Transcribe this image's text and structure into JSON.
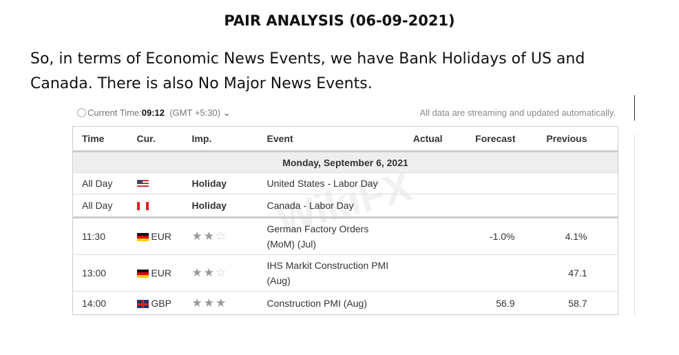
{
  "title": "PAIR ANALYSIS (06-09-2021)",
  "paragraph": "So, in terms of Economic News Events, we have Bank Holidays of US and Canada. There is also No Major News Events.",
  "calendar": {
    "current_time_label": "Current Time:",
    "current_time": "09:12",
    "timezone": "(GMT +5:30)",
    "stream_note": "All data are streaming and updated automatically.",
    "headers": [
      "Time",
      "Cur.",
      "Imp.",
      "Event",
      "Actual",
      "Forecast",
      "Previous"
    ],
    "date": "Monday, September 6, 2021",
    "rows": [
      {
        "time": "All Day",
        "flag": "us",
        "cur": "",
        "imp": "Holiday",
        "stars": 0,
        "event": "United States - Labor Day",
        "actual": "",
        "forecast": "",
        "previous": ""
      },
      {
        "time": "All Day",
        "flag": "ca",
        "cur": "",
        "imp": "Holiday",
        "stars": 0,
        "event": "Canada - Labor Day",
        "actual": "",
        "forecast": "",
        "previous": ""
      },
      {
        "time": "11:30",
        "flag": "de",
        "cur": "EUR",
        "imp": "",
        "stars": 2,
        "event": "German Factory Orders (MoM) (Jul)",
        "actual": "",
        "forecast": "-1.0%",
        "previous": "4.1%"
      },
      {
        "time": "13:00",
        "flag": "de",
        "cur": "EUR",
        "imp": "",
        "stars": 2,
        "event": "IHS Markit Construction PMI (Aug)",
        "actual": "",
        "forecast": "",
        "previous": "47.1"
      },
      {
        "time": "14:00",
        "flag": "gb",
        "cur": "GBP",
        "imp": "",
        "stars": 3,
        "event": "Construction PMI (Aug)",
        "actual": "",
        "forecast": "56.9",
        "previous": "58.7"
      }
    ]
  },
  "watermark": "WikiFX"
}
